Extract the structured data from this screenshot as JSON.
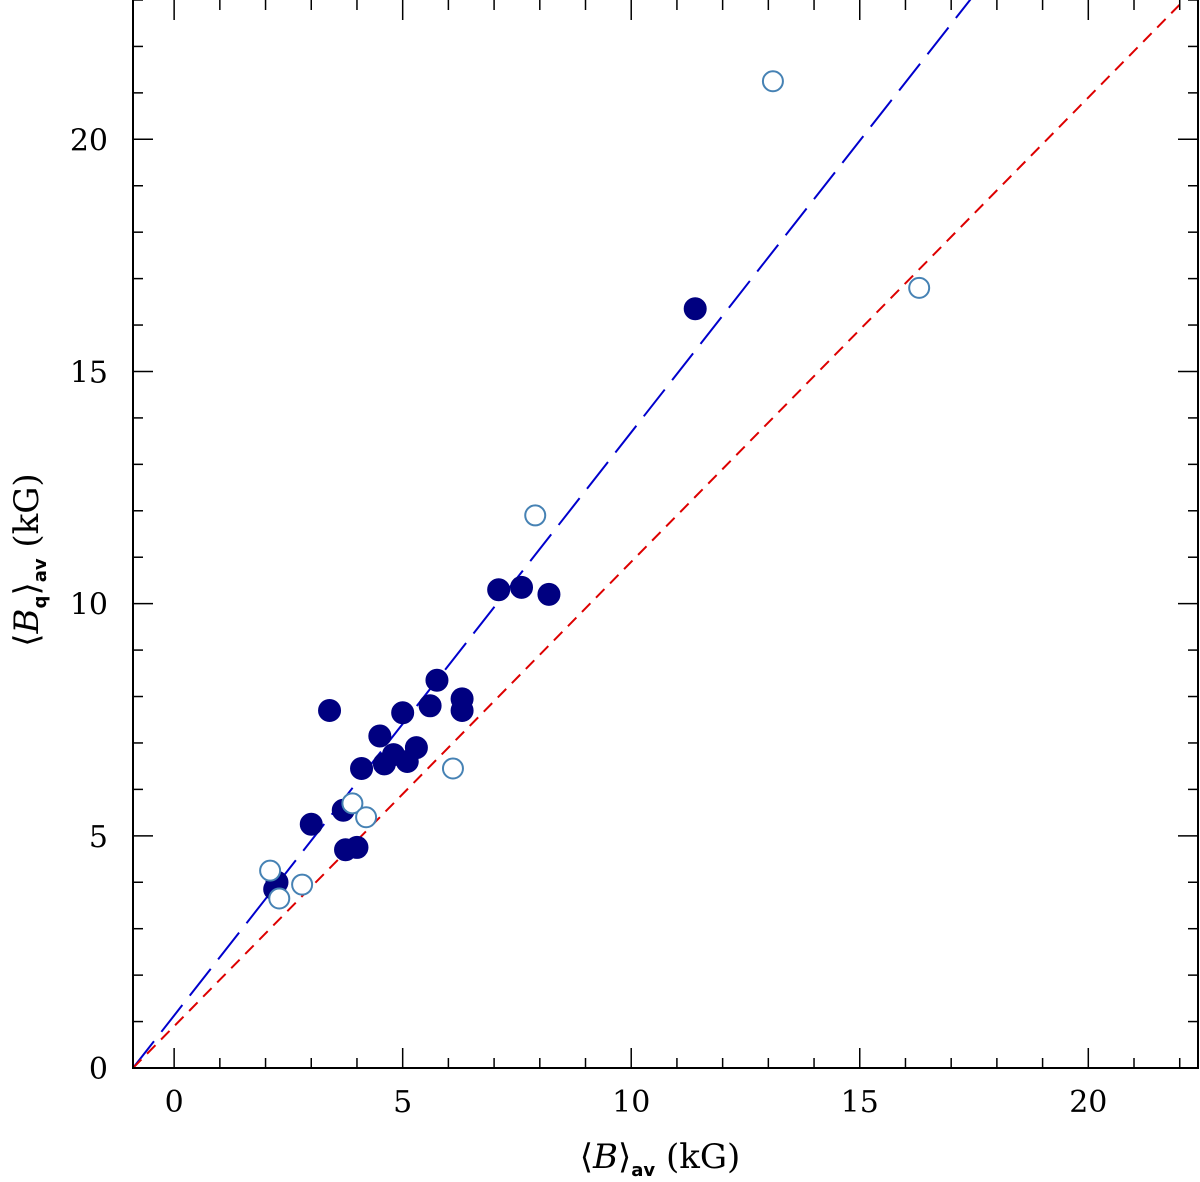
{
  "chart_data": {
    "type": "scatter",
    "xlabel": {
      "open": "⟨",
      "sym": "B",
      "close": "⟩",
      "sub": "av",
      "unit": " (kG)"
    },
    "ylabel": {
      "open": "⟨",
      "sym": "B",
      "symsub": "q",
      "close": "⟩",
      "sub": "av",
      "unit": " (kG)"
    },
    "xlim": [
      -0.9,
      22.4
    ],
    "ylim": [
      0,
      23
    ],
    "xticks": [
      0,
      5,
      10,
      15,
      20
    ],
    "yticks": [
      0,
      5,
      10,
      15,
      20
    ],
    "xtick_labels": [
      "0",
      "5",
      "10",
      "15",
      "20"
    ],
    "ytick_labels": [
      "0",
      "5",
      "10",
      "15",
      "20"
    ],
    "series": [
      {
        "name": "filled",
        "marker": "filled-circle",
        "color": "#000080",
        "x": [
          2.2,
          2.25,
          3.0,
          3.4,
          3.7,
          3.75,
          4.0,
          4.1,
          4.5,
          4.6,
          4.8,
          5.0,
          5.1,
          5.3,
          5.6,
          5.75,
          6.3,
          6.3,
          7.1,
          7.6,
          8.2,
          11.4
        ],
        "y": [
          3.85,
          4.0,
          5.25,
          7.7,
          5.55,
          4.7,
          4.75,
          6.45,
          7.15,
          6.55,
          6.75,
          7.65,
          6.6,
          6.9,
          7.8,
          8.35,
          7.95,
          7.7,
          10.3,
          10.35,
          10.2,
          16.35
        ]
      },
      {
        "name": "open",
        "marker": "open-circle",
        "color": "#4682b4",
        "x": [
          2.1,
          2.3,
          2.8,
          3.9,
          4.2,
          6.1,
          7.9,
          13.1,
          16.3
        ],
        "y": [
          4.25,
          3.65,
          3.95,
          5.7,
          5.4,
          6.45,
          11.9,
          21.25,
          16.8
        ]
      }
    ],
    "lines": [
      {
        "name": "fit-line",
        "style": "long-dash",
        "color": "#0000cc",
        "slope": 1.256,
        "intercept": 1.13
      },
      {
        "name": "identity-line",
        "style": "short-dash",
        "color": "#dd0000",
        "slope": 1.0,
        "intercept": 0.9
      }
    ]
  }
}
